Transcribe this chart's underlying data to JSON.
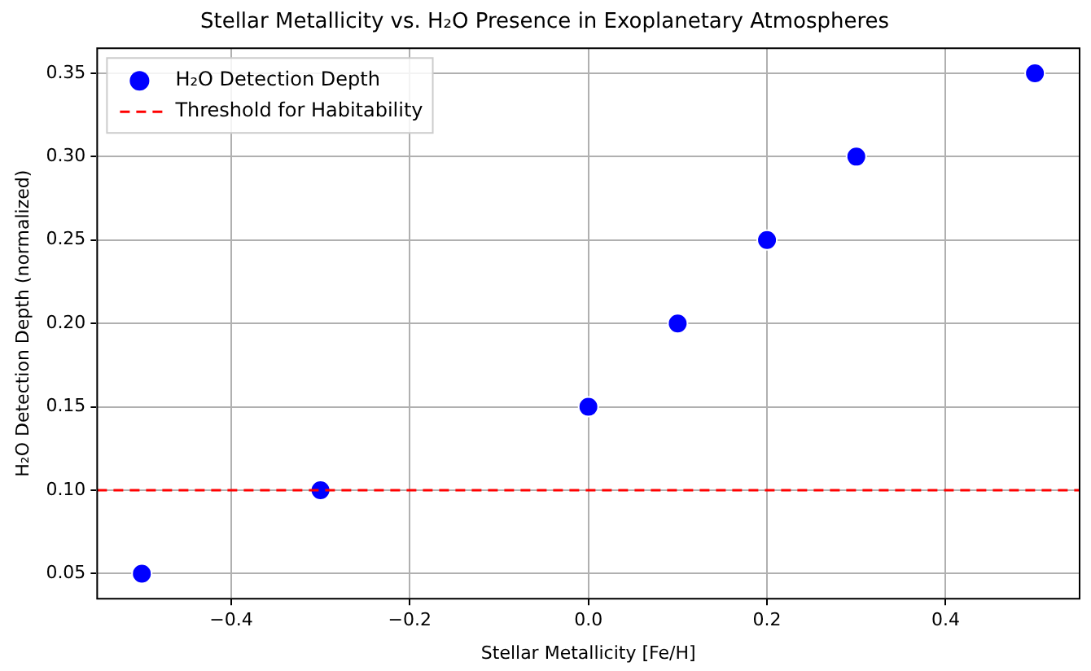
{
  "chart_data": {
    "type": "scatter",
    "title": "Stellar Metallicity vs. H₂O Presence in Exoplanetary Atmospheres",
    "xlabel": "Stellar Metallicity [Fe/H]",
    "ylabel": "H₂O Detection Depth (normalized)",
    "x": [
      -0.5,
      -0.3,
      0.0,
      0.1,
      0.2,
      0.3,
      0.5
    ],
    "series": [
      {
        "name": "H₂O Detection Depth",
        "color": "#0000ff",
        "values": [
          0.05,
          0.1,
          0.15,
          0.2,
          0.25,
          0.3,
          0.35
        ]
      }
    ],
    "xlim": [
      -0.55,
      0.55
    ],
    "ylim": [
      0.035,
      0.365
    ],
    "xticks": [
      {
        "value": -0.4,
        "label": "−0.4"
      },
      {
        "value": -0.2,
        "label": "−0.2"
      },
      {
        "value": 0,
        "label": "0.0"
      },
      {
        "value": 0.2,
        "label": "0.2"
      },
      {
        "value": 0.4,
        "label": "0.4"
      }
    ],
    "yticks": [
      {
        "value": 0.05,
        "label": "0.05"
      },
      {
        "value": 0.1,
        "label": "0.10"
      },
      {
        "value": 0.15,
        "label": "0.15"
      },
      {
        "value": 0.2,
        "label": "0.20"
      },
      {
        "value": 0.25,
        "label": "0.25"
      },
      {
        "value": 0.3,
        "label": "0.30"
      },
      {
        "value": 0.35,
        "label": "0.35"
      }
    ],
    "ref_lines": [
      {
        "axis": "y",
        "value": 0.1,
        "label": "Threshold for Habitability",
        "color": "#ff0000",
        "line_style": "dashed"
      }
    ],
    "grid": true,
    "legend": "top left",
    "marker": "circle"
  }
}
